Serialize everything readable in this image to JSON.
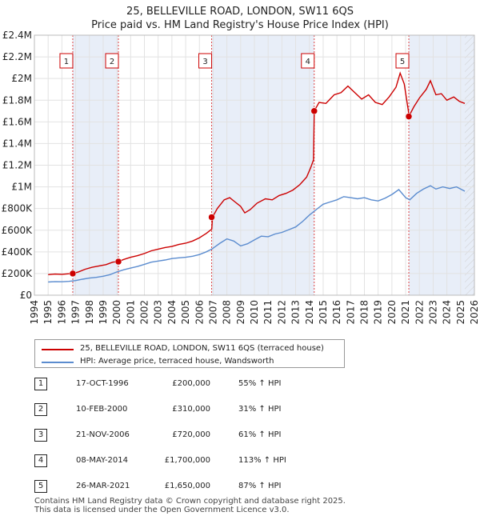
{
  "chart_data": {
    "type": "line",
    "title": "25, BELLEVILLE ROAD, LONDON, SW11 6QS",
    "subtitle": "Price paid vs. HM Land Registry's House Price Index (HPI)",
    "xlim": [
      1994,
      2026
    ],
    "ylim": [
      0,
      2400000
    ],
    "y_ticks": [
      {
        "value": 0,
        "label": "£0"
      },
      {
        "value": 200000,
        "label": "£200K"
      },
      {
        "value": 400000,
        "label": "£400K"
      },
      {
        "value": 600000,
        "label": "£600K"
      },
      {
        "value": 800000,
        "label": "£800K"
      },
      {
        "value": 1000000,
        "label": "£1M"
      },
      {
        "value": 1200000,
        "label": "£1.2M"
      },
      {
        "value": 1400000,
        "label": "£1.4M"
      },
      {
        "value": 1600000,
        "label": "£1.6M"
      },
      {
        "value": 1800000,
        "label": "£1.8M"
      },
      {
        "value": 2000000,
        "label": "£2M"
      },
      {
        "value": 2200000,
        "label": "£2.2M"
      },
      {
        "value": 2400000,
        "label": "£2.4M"
      }
    ],
    "x_ticks": [
      "1994",
      "1995",
      "1996",
      "1997",
      "1998",
      "1999",
      "2000",
      "2001",
      "2002",
      "2003",
      "2004",
      "2005",
      "2006",
      "2007",
      "2008",
      "2009",
      "2010",
      "2011",
      "2012",
      "2013",
      "2014",
      "2015",
      "2016",
      "2017",
      "2018",
      "2019",
      "2020",
      "2021",
      "2022",
      "2023",
      "2024",
      "2025",
      "2026"
    ],
    "series": [
      {
        "name": "25, BELLEVILLE ROAD, LONDON, SW11 6QS (terraced house)",
        "color": "#cc0000",
        "points": [
          [
            1995.0,
            190000
          ],
          [
            1995.5,
            195000
          ],
          [
            1996.0,
            193000
          ],
          [
            1996.5,
            198000
          ],
          [
            1996.8,
            200000
          ],
          [
            1997.2,
            215000
          ],
          [
            1997.7,
            240000
          ],
          [
            1998.2,
            258000
          ],
          [
            1998.7,
            270000
          ],
          [
            1999.2,
            282000
          ],
          [
            1999.7,
            305000
          ],
          [
            2000.1,
            310000
          ],
          [
            2000.5,
            330000
          ],
          [
            2001.0,
            350000
          ],
          [
            2001.5,
            365000
          ],
          [
            2002.0,
            385000
          ],
          [
            2002.5,
            410000
          ],
          [
            2003.0,
            425000
          ],
          [
            2003.5,
            440000
          ],
          [
            2004.0,
            450000
          ],
          [
            2004.5,
            468000
          ],
          [
            2005.0,
            480000
          ],
          [
            2005.5,
            500000
          ],
          [
            2006.0,
            530000
          ],
          [
            2006.5,
            570000
          ],
          [
            2006.9,
            610000
          ],
          [
            2006.95,
            720000
          ],
          [
            2007.3,
            800000
          ],
          [
            2007.8,
            880000
          ],
          [
            2008.2,
            900000
          ],
          [
            2008.6,
            860000
          ],
          [
            2009.0,
            820000
          ],
          [
            2009.3,
            760000
          ],
          [
            2009.7,
            790000
          ],
          [
            2010.2,
            850000
          ],
          [
            2010.8,
            890000
          ],
          [
            2011.3,
            880000
          ],
          [
            2011.8,
            920000
          ],
          [
            2012.3,
            940000
          ],
          [
            2012.8,
            970000
          ],
          [
            2013.3,
            1020000
          ],
          [
            2013.8,
            1090000
          ],
          [
            2014.1,
            1180000
          ],
          [
            2014.3,
            1250000
          ],
          [
            2014.35,
            1700000
          ],
          [
            2014.7,
            1780000
          ],
          [
            2015.2,
            1770000
          ],
          [
            2015.8,
            1850000
          ],
          [
            2016.3,
            1870000
          ],
          [
            2016.8,
            1930000
          ],
          [
            2017.3,
            1870000
          ],
          [
            2017.8,
            1810000
          ],
          [
            2018.3,
            1850000
          ],
          [
            2018.8,
            1780000
          ],
          [
            2019.3,
            1760000
          ],
          [
            2019.8,
            1830000
          ],
          [
            2020.3,
            1920000
          ],
          [
            2020.6,
            2050000
          ],
          [
            2020.9,
            1950000
          ],
          [
            2021.2,
            1700000
          ],
          [
            2021.23,
            1650000
          ],
          [
            2021.6,
            1740000
          ],
          [
            2022.0,
            1820000
          ],
          [
            2022.5,
            1900000
          ],
          [
            2022.8,
            1980000
          ],
          [
            2023.2,
            1850000
          ],
          [
            2023.6,
            1860000
          ],
          [
            2024.0,
            1800000
          ],
          [
            2024.5,
            1830000
          ],
          [
            2024.9,
            1790000
          ],
          [
            2025.3,
            1770000
          ]
        ]
      },
      {
        "name": "HPI: Average price, terraced house, Wandsworth",
        "color": "#5b8ccf",
        "points": [
          [
            1995.0,
            122000
          ],
          [
            1995.5,
            125000
          ],
          [
            1996.0,
            124000
          ],
          [
            1996.5,
            128000
          ],
          [
            1997.0,
            135000
          ],
          [
            1997.5,
            148000
          ],
          [
            1998.0,
            158000
          ],
          [
            1998.5,
            165000
          ],
          [
            1999.0,
            175000
          ],
          [
            1999.5,
            190000
          ],
          [
            2000.0,
            215000
          ],
          [
            2000.5,
            235000
          ],
          [
            2001.0,
            250000
          ],
          [
            2001.5,
            265000
          ],
          [
            2002.0,
            285000
          ],
          [
            2002.5,
            305000
          ],
          [
            2003.0,
            315000
          ],
          [
            2003.5,
            325000
          ],
          [
            2004.0,
            338000
          ],
          [
            2004.5,
            345000
          ],
          [
            2005.0,
            350000
          ],
          [
            2005.5,
            360000
          ],
          [
            2006.0,
            375000
          ],
          [
            2006.5,
            400000
          ],
          [
            2006.9,
            425000
          ],
          [
            2007.5,
            480000
          ],
          [
            2008.0,
            520000
          ],
          [
            2008.5,
            500000
          ],
          [
            2009.0,
            455000
          ],
          [
            2009.5,
            475000
          ],
          [
            2010.0,
            510000
          ],
          [
            2010.5,
            545000
          ],
          [
            2011.0,
            540000
          ],
          [
            2011.5,
            565000
          ],
          [
            2012.0,
            580000
          ],
          [
            2012.5,
            605000
          ],
          [
            2013.0,
            630000
          ],
          [
            2013.5,
            680000
          ],
          [
            2014.0,
            740000
          ],
          [
            2014.5,
            790000
          ],
          [
            2015.0,
            840000
          ],
          [
            2015.5,
            860000
          ],
          [
            2016.0,
            880000
          ],
          [
            2016.5,
            910000
          ],
          [
            2017.0,
            900000
          ],
          [
            2017.5,
            890000
          ],
          [
            2018.0,
            900000
          ],
          [
            2018.5,
            880000
          ],
          [
            2019.0,
            870000
          ],
          [
            2019.5,
            895000
          ],
          [
            2020.0,
            930000
          ],
          [
            2020.5,
            975000
          ],
          [
            2021.0,
            900000
          ],
          [
            2021.3,
            880000
          ],
          [
            2021.8,
            940000
          ],
          [
            2022.3,
            980000
          ],
          [
            2022.8,
            1010000
          ],
          [
            2023.2,
            980000
          ],
          [
            2023.7,
            1000000
          ],
          [
            2024.2,
            985000
          ],
          [
            2024.7,
            1000000
          ],
          [
            2025.3,
            960000
          ]
        ]
      }
    ],
    "transactions": [
      {
        "n": "1",
        "year": 1996.79,
        "value": 200000,
        "date": "17-OCT-1996",
        "price": "£200,000",
        "hpi": "55% ↑ HPI"
      },
      {
        "n": "2",
        "year": 2000.11,
        "value": 310000,
        "date": "10-FEB-2000",
        "price": "£310,000",
        "hpi": "31% ↑ HPI"
      },
      {
        "n": "3",
        "year": 2006.89,
        "value": 720000,
        "date": "21-NOV-2006",
        "price": "£720,000",
        "hpi": "61% ↑ HPI"
      },
      {
        "n": "4",
        "year": 2014.35,
        "value": 1700000,
        "date": "08-MAY-2014",
        "price": "£1,700,000",
        "hpi": "113% ↑ HPI"
      },
      {
        "n": "5",
        "year": 2021.23,
        "value": 1650000,
        "date": "26-MAR-2021",
        "price": "£1,650,000",
        "hpi": "87% ↑ HPI"
      }
    ],
    "shaded_spans": [
      [
        1996.79,
        2000.11
      ],
      [
        2006.89,
        2014.35
      ],
      [
        2021.23,
        2026
      ]
    ],
    "shade_color": "#e8eef8",
    "future_hatch_from": 2025.3
  },
  "legend": {
    "items": [
      {
        "label": "25, BELLEVILLE ROAD, LONDON, SW11 6QS (terraced house)",
        "color": "#cc0000"
      },
      {
        "label": "HPI: Average price, terraced house, Wandsworth",
        "color": "#5b8ccf"
      }
    ]
  },
  "footer": {
    "line1": "Contains HM Land Registry data © Crown copyright and database right 2025.",
    "line2": "This data is licensed under the Open Government Licence v3.0."
  }
}
